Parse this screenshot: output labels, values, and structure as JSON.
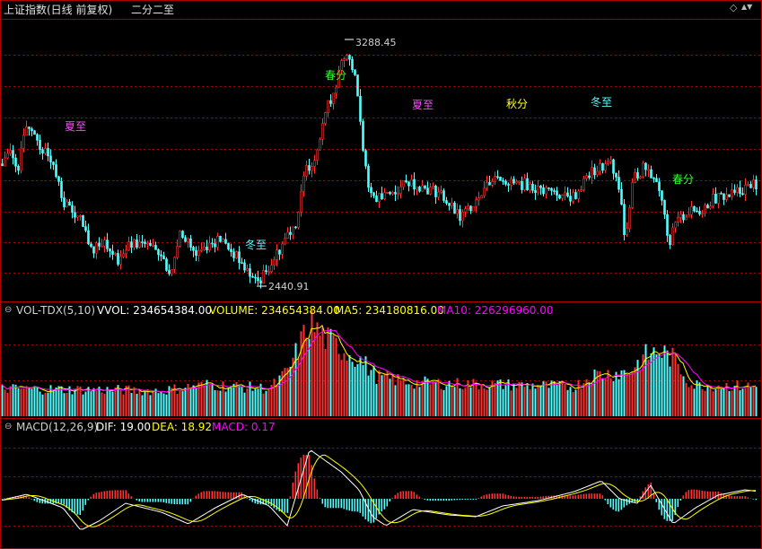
{
  "header": {
    "index_name": "上证指数(日线 前复权)",
    "mode": "二分二至",
    "diamond_label": "◇",
    "up_down_label": "▲▼",
    "diamond_icon": "diamond-icon",
    "updown_icon": "up-down-arrows-icon"
  },
  "colors": {
    "background": "#000000",
    "up": "#ff3232",
    "down": "#54ffff",
    "grid": "#b00000",
    "white_line": "#ffffff",
    "yellow_line": "#ffff00",
    "magenta": "#ff00ff",
    "season_green": "#33ff33",
    "season_magenta": "#ff44ff",
    "season_yellow": "#ffff33",
    "season_cyan": "#54ffff"
  },
  "price_panel": {
    "high_label": "3288.45",
    "low_label": "2440.91"
  },
  "season_marks": [
    {
      "label": "夏至",
      "color": "#ff44ff"
    },
    {
      "label": "冬至",
      "color": "#54ffff"
    },
    {
      "label": "春分",
      "color": "#33ff33"
    },
    {
      "label": "夏至",
      "color": "#ff44ff"
    },
    {
      "label": "秋分",
      "color": "#ffff33"
    },
    {
      "label": "冬至",
      "color": "#54ffff"
    },
    {
      "label": "春分",
      "color": "#33ff33"
    }
  ],
  "volume_panel": {
    "indicator": "VOL-TDX(5,10)",
    "vvol": "VVOL: 234654384.00",
    "volume": "VOLUME: 234654384.00",
    "ma5": "MA5: 234180816.00",
    "ma10": "MA10: 226296960.00"
  },
  "macd_panel": {
    "indicator": "MACD(12,26,9)",
    "dif": "DIF: 19.00",
    "dea": "DEA: 18.92",
    "macd": "MACD: 0.17"
  },
  "chart_data": [
    {
      "type": "candlestick",
      "title": "上证指数(日线 前复权)",
      "max_label": 3288.45,
      "min_label": 2440.91,
      "anchors_price": [
        [
          0,
          2860
        ],
        [
          10,
          2900
        ],
        [
          20,
          2850
        ],
        [
          30,
          3000
        ],
        [
          38,
          2975
        ],
        [
          45,
          2910
        ],
        [
          55,
          2895
        ],
        [
          70,
          2730
        ],
        [
          80,
          2690
        ],
        [
          90,
          2660
        ],
        [
          100,
          2560
        ],
        [
          115,
          2600
        ],
        [
          130,
          2530
        ],
        [
          145,
          2580
        ],
        [
          160,
          2590
        ],
        [
          175,
          2550
        ],
        [
          190,
          2470
        ],
        [
          200,
          2640
        ],
        [
          218,
          2550
        ],
        [
          230,
          2580
        ],
        [
          245,
          2600
        ],
        [
          260,
          2550
        ],
        [
          270,
          2510
        ],
        [
          285,
          2450
        ],
        [
          292,
          2470
        ],
        [
          300,
          2510
        ],
        [
          310,
          2560
        ],
        [
          320,
          2620
        ],
        [
          330,
          2660
        ],
        [
          340,
          2840
        ],
        [
          350,
          2880
        ],
        [
          360,
          3020
        ],
        [
          370,
          3100
        ],
        [
          380,
          3200
        ],
        [
          388,
          3230
        ],
        [
          396,
          3170
        ],
        [
          404,
          2910
        ],
        [
          412,
          2760
        ],
        [
          422,
          2740
        ],
        [
          440,
          2760
        ],
        [
          455,
          2800
        ],
        [
          470,
          2780
        ],
        [
          490,
          2760
        ],
        [
          505,
          2700
        ],
        [
          512,
          2670
        ],
        [
          520,
          2700
        ],
        [
          530,
          2740
        ],
        [
          545,
          2800
        ],
        [
          555,
          2820
        ],
        [
          570,
          2790
        ],
        [
          585,
          2790
        ],
        [
          600,
          2770
        ],
        [
          615,
          2770
        ],
        [
          630,
          2740
        ],
        [
          640,
          2750
        ],
        [
          655,
          2820
        ],
        [
          670,
          2850
        ],
        [
          680,
          2860
        ],
        [
          690,
          2760
        ],
        [
          696,
          2590
        ],
        [
          705,
          2810
        ],
        [
          718,
          2850
        ],
        [
          728,
          2820
        ],
        [
          738,
          2740
        ],
        [
          745,
          2580
        ],
        [
          752,
          2650
        ],
        [
          765,
          2690
        ],
        [
          780,
          2700
        ],
        [
          795,
          2740
        ],
        [
          810,
          2750
        ],
        [
          820,
          2760
        ],
        [
          835,
          2790
        ],
        [
          845,
          2785
        ]
      ],
      "season_labels": [
        "夏至",
        "冬至",
        "春分",
        "夏至",
        "秋分",
        "冬至",
        "春分"
      ]
    },
    {
      "type": "bar",
      "title": "VOL-TDX(5,10)",
      "series": [
        {
          "name": "VVOL",
          "last_value": 234654384.0
        },
        {
          "name": "MA5",
          "last_value": 234180816.0
        },
        {
          "name": "MA10",
          "last_value": 226296960.0
        }
      ]
    },
    {
      "type": "line",
      "title": "MACD(12,26,9)",
      "series": [
        {
          "name": "DIF",
          "last_value": 19.0
        },
        {
          "name": "DEA",
          "last_value": 18.92
        },
        {
          "name": "MACD",
          "last_value": 0.17
        }
      ]
    }
  ]
}
